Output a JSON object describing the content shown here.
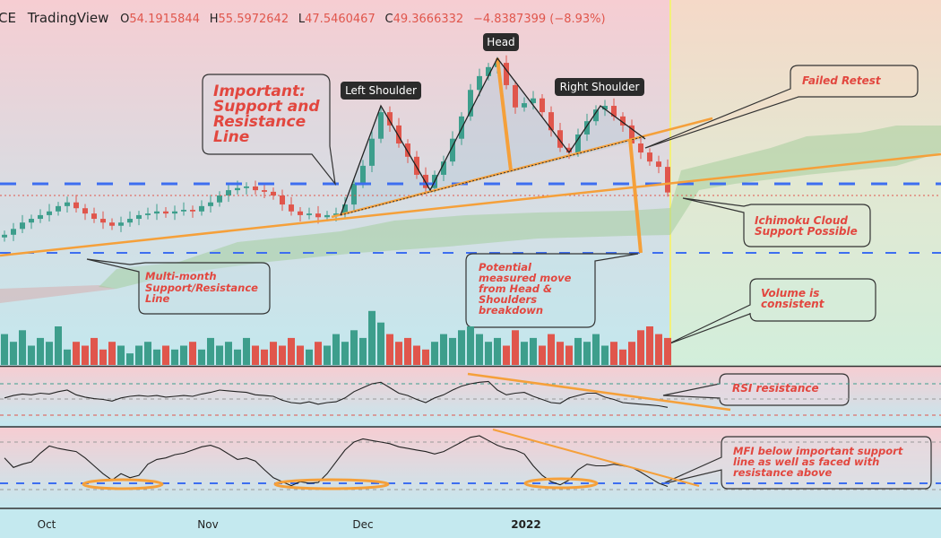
{
  "header": {
    "symbol_fragment": "CE",
    "source": "TradingView",
    "open_label": "O",
    "open": "54.1915844",
    "high_label": "H",
    "high": "55.5972642",
    "low_label": "L",
    "low": "47.5460467",
    "close_label": "C",
    "close": "49.3666332",
    "change": "−4.8387399 (−8.93%)"
  },
  "colors": {
    "up": "#3d9e8c",
    "down": "#e0564c",
    "level": "#3d6ef0",
    "trend": "#f5a03a",
    "note_text": "#e2473f"
  },
  "pattern_labels": {
    "left_shoulder": "Left Shoulder",
    "head": "Head",
    "right_shoulder": "Right Shoulder"
  },
  "annotations": {
    "important": [
      "Important:",
      "Support and",
      "Resistance",
      "Line"
    ],
    "multi_month": [
      "Multi-month",
      "Support/Resistance",
      "Line"
    ],
    "measured_move": [
      "Potential",
      "measured move",
      "from Head &",
      "Shoulders",
      "breakdown"
    ],
    "failed_retest": [
      "Failed Retest"
    ],
    "ichimoku": [
      "Ichimoku Cloud",
      "Support Possible"
    ],
    "volume": [
      "Volume is",
      "consistent"
    ],
    "rsi": [
      "RSI resistance"
    ],
    "mfi": [
      "MFI below important support",
      "line as well as faced with",
      "resistance above"
    ]
  },
  "chart_data": [
    {
      "type": "candlestick",
      "title": "",
      "x_tick_labels": [
        "Oct",
        "Nov",
        "Dec",
        "2022"
      ],
      "closes": [
        41.4,
        42.5,
        43.7,
        44.4,
        45.1,
        45.8,
        46.8,
        47.5,
        46.4,
        45.4,
        44.4,
        43.7,
        43.1,
        43.7,
        44.4,
        45.1,
        45.4,
        45.8,
        45.4,
        45.8,
        46.1,
        45.8,
        46.8,
        47.5,
        48.8,
        49.8,
        50.2,
        50.5,
        49.8,
        49.5,
        48.8,
        47.1,
        45.8,
        45.1,
        45.4,
        44.7,
        45.1,
        45.4,
        47.1,
        51.0,
        54.4,
        59.5,
        64.5,
        62.0,
        58.6,
        56.1,
        52.7,
        50.2,
        52.7,
        55.2,
        59.5,
        63.7,
        68.7,
        71.3,
        73.0,
        73.8,
        69.6,
        65.4,
        66.2,
        67.1,
        64.5,
        61.1,
        57.8,
        56.9,
        60.3,
        62.8,
        65.0,
        65.7,
        63.7,
        62.0,
        58.6,
        56.9,
        55.2,
        54.2,
        49.37
      ],
      "horizontal_levels": [
        51.0,
        37.9
      ],
      "last_close_level": 49.37
    },
    {
      "type": "bar",
      "title": "",
      "values": [
        8,
        6,
        9,
        5,
        7,
        6,
        10,
        4,
        6,
        5,
        7,
        4,
        6,
        5,
        3,
        5,
        6,
        4,
        5,
        4,
        5,
        6,
        4,
        7,
        5,
        6,
        4,
        7,
        5,
        4,
        6,
        5,
        7,
        5,
        4,
        6,
        5,
        8,
        6,
        9,
        7,
        14,
        11,
        8,
        6,
        7,
        5,
        4,
        6,
        8,
        7,
        9,
        10,
        8,
        6,
        7,
        5,
        9,
        6,
        7,
        5,
        8,
        6,
        5,
        7,
        6,
        8,
        5,
        6,
        4,
        6,
        9,
        10,
        8,
        7
      ]
    },
    {
      "type": "line",
      "title": "",
      "bands": [
        70,
        50,
        30
      ],
      "values": [
        52,
        55,
        57,
        56,
        58,
        57,
        60,
        62,
        56,
        53,
        51,
        50,
        48,
        52,
        54,
        55,
        54,
        55,
        53,
        54,
        55,
        54,
        57,
        59,
        62,
        61,
        60,
        59,
        56,
        55,
        54,
        49,
        46,
        45,
        47,
        44,
        46,
        47,
        52,
        60,
        65,
        70,
        72,
        65,
        58,
        55,
        50,
        46,
        52,
        56,
        62,
        67,
        70,
        72,
        73,
        62,
        56,
        58,
        59,
        54,
        50,
        46,
        45,
        52,
        55,
        58,
        58,
        53,
        50,
        46,
        45,
        44,
        43,
        42,
        40
      ]
    },
    {
      "type": "line",
      "title": "",
      "bands": [
        80,
        20
      ],
      "support_level": 28,
      "values": [
        60,
        48,
        52,
        55,
        66,
        75,
        72,
        70,
        68,
        60,
        50,
        40,
        32,
        40,
        35,
        38,
        52,
        58,
        60,
        64,
        66,
        70,
        74,
        76,
        72,
        65,
        58,
        60,
        56,
        45,
        35,
        30,
        25,
        30,
        28,
        29,
        40,
        55,
        70,
        80,
        84,
        82,
        80,
        78,
        74,
        72,
        70,
        68,
        65,
        68,
        74,
        80,
        86,
        88,
        82,
        76,
        72,
        70,
        65,
        50,
        38,
        30,
        26,
        32,
        45,
        52,
        50,
        50,
        52,
        50,
        48,
        42,
        35,
        28,
        24
      ]
    }
  ]
}
